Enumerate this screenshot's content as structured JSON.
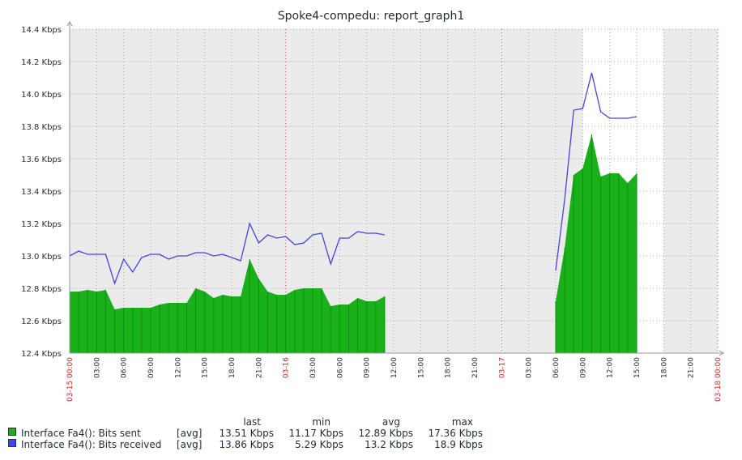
{
  "title": "Spoke4-compedu: report_graph1",
  "chart_data": {
    "type": "area",
    "title": "Spoke4-compedu: report_graph1",
    "ylim": [
      12.4,
      14.4
    ],
    "yunit": "Kbps",
    "yticks": [
      "14.4 Kbps",
      "14.2 Kbps",
      "14.0 Kbps",
      "13.8 Kbps",
      "13.6 Kbps",
      "13.4 Kbps",
      "13.2 Kbps",
      "13.0 Kbps",
      "12.8 Kbps",
      "12.6 Kbps",
      "12.4 Kbps"
    ],
    "xlim_hours": [
      0,
      72
    ],
    "xticks": [
      {
        "h": 0,
        "label": "03-15 00:00",
        "major": true
      },
      {
        "h": 3,
        "label": "03:00"
      },
      {
        "h": 6,
        "label": "06:00"
      },
      {
        "h": 9,
        "label": "09:00"
      },
      {
        "h": 12,
        "label": "12:00"
      },
      {
        "h": 15,
        "label": "15:00"
      },
      {
        "h": 18,
        "label": "18:00"
      },
      {
        "h": 21,
        "label": "21:00"
      },
      {
        "h": 24,
        "label": "03-16",
        "major": true
      },
      {
        "h": 27,
        "label": "03:00"
      },
      {
        "h": 30,
        "label": "06:00"
      },
      {
        "h": 33,
        "label": "09:00"
      },
      {
        "h": 36,
        "label": "12:00"
      },
      {
        "h": 39,
        "label": "15:00"
      },
      {
        "h": 42,
        "label": "18:00"
      },
      {
        "h": 45,
        "label": "21:00"
      },
      {
        "h": 48,
        "label": "03-17",
        "major": true
      },
      {
        "h": 51,
        "label": "03:00"
      },
      {
        "h": 54,
        "label": "06:00"
      },
      {
        "h": 57,
        "label": "09:00"
      },
      {
        "h": 60,
        "label": "12:00"
      },
      {
        "h": 63,
        "label": "15:00"
      },
      {
        "h": 66,
        "label": "18:00"
      },
      {
        "h": 69,
        "label": "21:00"
      },
      {
        "h": 72,
        "label": "03-18 00:00",
        "major": true
      }
    ],
    "white_band_hours": [
      57,
      66
    ],
    "x_hours": [
      0,
      1,
      2,
      3,
      4,
      5,
      6,
      7,
      8,
      9,
      10,
      11,
      12,
      13,
      14,
      15,
      16,
      17,
      18,
      19,
      20,
      21,
      22,
      23,
      24,
      25,
      26,
      27,
      28,
      29,
      30,
      31,
      32,
      33,
      34,
      35,
      54,
      55,
      56,
      57,
      58,
      59,
      60,
      61,
      62,
      63
    ],
    "series": [
      {
        "name": "Interface Fa4(): Bits sent",
        "color": "#1ab01a",
        "fill": true,
        "values": [
          12.78,
          12.78,
          12.79,
          12.78,
          12.79,
          12.67,
          12.68,
          12.68,
          12.68,
          12.68,
          12.7,
          12.71,
          12.71,
          12.71,
          12.8,
          12.78,
          12.74,
          12.76,
          12.75,
          12.75,
          12.98,
          12.86,
          12.78,
          12.76,
          12.76,
          12.79,
          12.8,
          12.8,
          12.8,
          12.69,
          12.7,
          12.7,
          12.74,
          12.72,
          12.72,
          12.75,
          12.72,
          13.05,
          13.5,
          13.54,
          13.75,
          13.49,
          13.51,
          13.51,
          13.45,
          13.51
        ]
      },
      {
        "name": "Interface Fa4(): Bits received",
        "color": "#4444ee",
        "fill": false,
        "values": [
          13.0,
          13.03,
          13.01,
          13.01,
          13.01,
          12.83,
          12.98,
          12.9,
          12.99,
          13.01,
          13.01,
          12.98,
          13.0,
          13.0,
          13.02,
          13.02,
          13.0,
          13.01,
          12.99,
          12.97,
          13.2,
          13.08,
          13.13,
          13.11,
          13.12,
          13.07,
          13.08,
          13.13,
          13.14,
          12.95,
          13.11,
          13.11,
          13.15,
          13.14,
          13.14,
          13.13,
          12.91,
          13.35,
          13.9,
          13.91,
          14.13,
          13.89,
          13.85,
          13.85,
          13.85,
          13.86
        ]
      }
    ]
  },
  "legend": {
    "headers": {
      "last": "last",
      "min": "min",
      "avg": "avg",
      "max": "max"
    },
    "rows": [
      {
        "name": "Interface Fa4(): Bits sent",
        "fn": "[avg]",
        "last": "13.51 Kbps",
        "min": "11.17 Kbps",
        "avg": "12.89 Kbps",
        "max": "17.36 Kbps",
        "color": "#1ab01a"
      },
      {
        "name": "Interface Fa4(): Bits received",
        "fn": "[avg]",
        "last": "13.86 Kbps",
        "min": "5.29 Kbps",
        "avg": "13.2 Kbps",
        "max": "18.9 Kbps",
        "color": "#4444ee"
      }
    ]
  }
}
